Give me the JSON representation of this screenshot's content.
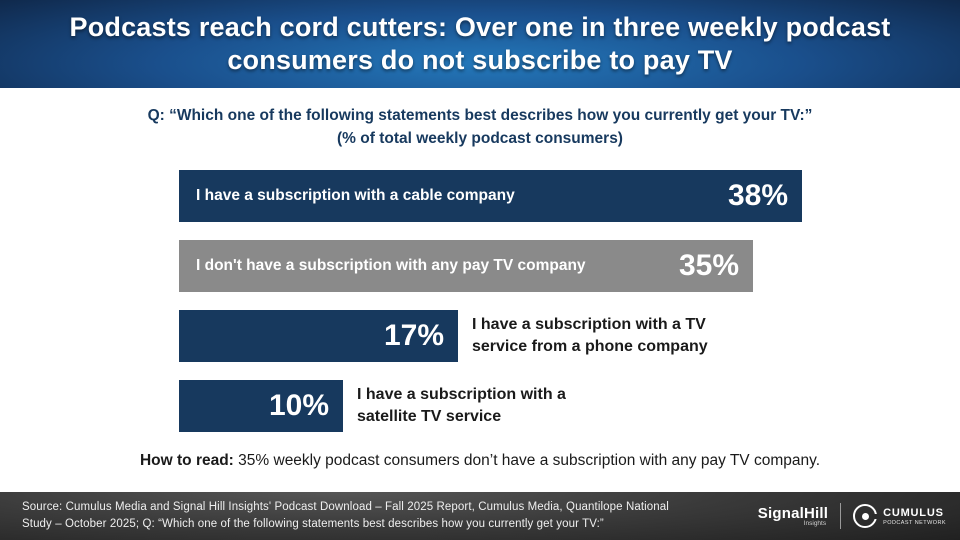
{
  "header": {
    "title": "Podcasts reach cord cutters: Over one in three weekly podcast consumers do not subscribe to pay TV"
  },
  "question": {
    "line1": "Q: “Which one of the following statements best describes how you currently get your TV:”",
    "line2": "(% of total weekly podcast consumers)"
  },
  "chart_data": {
    "type": "bar",
    "orientation": "horizontal",
    "title": "Which one of the following statements best describes how you currently get your TV (% of total weekly podcast consumers)",
    "categories": [
      "I have a subscription with a cable company",
      "I don't have a subscription with any pay TV company",
      "I have a subscription with a TV service from a phone company",
      "I have a subscription with a satellite TV service"
    ],
    "values": [
      38,
      35,
      17,
      10
    ],
    "value_labels": [
      "38%",
      "35%",
      "17%",
      "10%"
    ],
    "unit": "%",
    "xlim": [
      0,
      46
    ],
    "grid": false,
    "bar_colors": [
      "#17395e",
      "#8a8a8a",
      "#17395e",
      "#17395e"
    ],
    "label_placement": [
      "inside-left",
      "inside-left",
      "outside-right",
      "outside-right"
    ]
  },
  "how_to_read": {
    "lead": "How to read:",
    "rest": " 35% weekly podcast consumers don’t have a subscription with any pay TV company."
  },
  "footer": {
    "source_line1": "Source: Cumulus Media and Signal Hill Insights' Podcast Download – Fall 2025 Report, Cumulus Media, Quantilope National",
    "source_line2": "Study – October 2025; Q:  “Which one of the following statements best describes how you currently get your TV:”",
    "signalhill_name": "SignalHill",
    "signalhill_sub": "Insights",
    "cumulus_name": "CUMULUS",
    "cumulus_sub": "PODCAST NETWORK"
  },
  "colors": {
    "navy_bar": "#17395e",
    "gray_bar": "#8a8a8a",
    "header_blue_center": "#2478ba",
    "header_blue_edge": "#0e2342",
    "question_text": "#17395e",
    "footer_bg": "#2b2b2b",
    "body_bg": "#ffffff"
  }
}
